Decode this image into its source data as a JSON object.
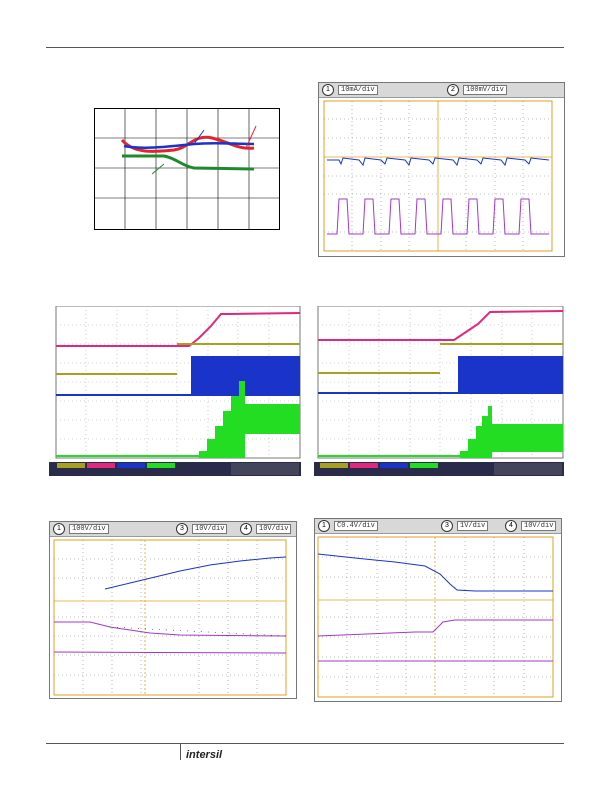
{
  "footer": {
    "logo": "intersil"
  },
  "scopes": {
    "top_right": {
      "ch1": "1",
      "ch1_label": "10mA/div",
      "ch2": "2",
      "ch2_label": "100mV/div"
    },
    "bottom_left": {
      "ch1": "1",
      "ch1_label": "100V/div",
      "ch3": "3",
      "ch3_label": "10V/div",
      "ch4": "4",
      "ch4_label": "10V/div"
    },
    "bottom_right": {
      "ch1": "1",
      "ch1_label": "C0.4V/div",
      "ch3": "3",
      "ch3_label": "1V/div",
      "ch4": "4",
      "ch4_label": "10V/div"
    }
  },
  "colors": {
    "red": "#e2242b",
    "blue": "#1a33c8",
    "green": "#1f8a2a",
    "magenta": "#e0287f",
    "olive": "#a8a020",
    "bright_green": "#22dd22",
    "purple": "#a038c8",
    "orange": "#e0a020"
  }
}
